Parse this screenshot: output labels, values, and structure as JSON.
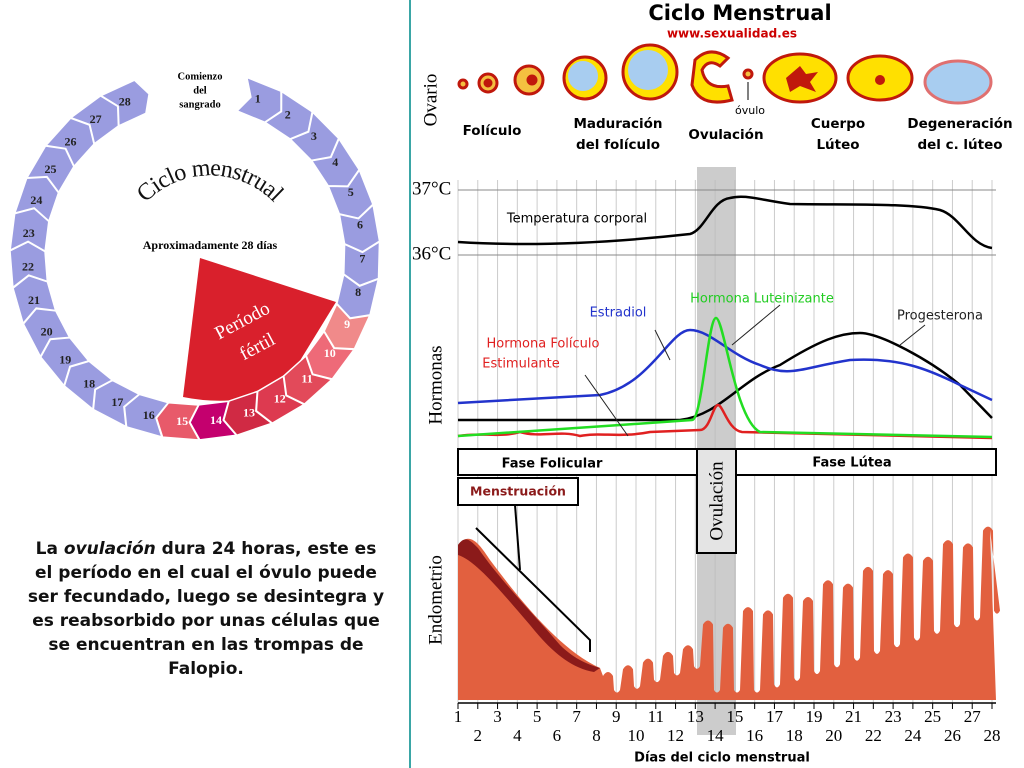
{
  "calendar": {
    "start_label": [
      "Comienzo",
      "del",
      "sangrado"
    ],
    "title": "Ciclo menstrual",
    "subtitle": "Aproximadamente 28 días",
    "fertile_label": [
      "Período",
      "fértil"
    ],
    "days": [
      1,
      2,
      3,
      4,
      5,
      6,
      7,
      8,
      9,
      10,
      11,
      12,
      13,
      14,
      15,
      16,
      17,
      18,
      19,
      20,
      21,
      22,
      23,
      24,
      25,
      26,
      27,
      28
    ]
  },
  "paragraph": {
    "parts": [
      "La ",
      "ovulación",
      " dura 24 horas, este es el período en el cual el óvulo puede ser fecundado, luego se desintegra y es reabsorbido por unas células que se encuentran en las trompas de Falopio."
    ]
  },
  "diagram": {
    "title": "Ciclo Menstrual",
    "url": "www.sexualidad.es",
    "ovary_label": "Ovario",
    "ovule_label": "óvulo",
    "stages": [
      [
        "Folículo"
      ],
      [
        "Maduración",
        "del folículo"
      ],
      [
        "Ovulación"
      ],
      [
        "Cuerpo",
        "Lúteo"
      ],
      [
        "Degeneración",
        "del c. lúteo"
      ]
    ],
    "temperature": {
      "high": "37°C",
      "low": "36°C",
      "label": "Temperatura corporal"
    },
    "hormones": {
      "axis_label": "Hormonas",
      "estradiol": "Estradiol",
      "lh": "Hormona Luteinizante",
      "progesterone": "Progesterona",
      "fsh": [
        "Hormona Folículo",
        "Estimulante"
      ]
    },
    "phases": {
      "follicular": "Fase Folicular",
      "luteal": "Fase Lútea",
      "ovulation": "Ovulación",
      "menstruation": "Menstruación"
    },
    "endometrium_label": "Endometrio",
    "days": [
      1,
      2,
      3,
      4,
      5,
      6,
      7,
      8,
      9,
      10,
      11,
      12,
      13,
      14,
      15,
      16,
      17,
      18,
      19,
      20,
      21,
      22,
      23,
      24,
      25,
      26,
      27,
      28
    ],
    "x_label": "Días del ciclo menstrual"
  }
}
